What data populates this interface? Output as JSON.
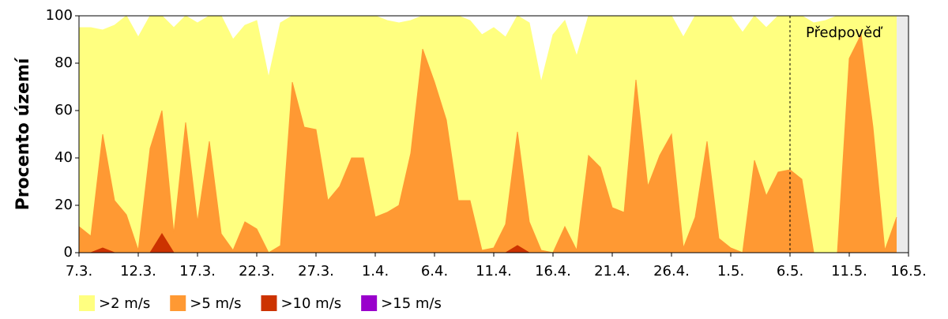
{
  "chart_data": {
    "type": "area",
    "ylabel": "Procento území",
    "categories": [
      "7.3.",
      null,
      null,
      null,
      null,
      "12.3.",
      null,
      null,
      null,
      null,
      "17.3.",
      null,
      null,
      null,
      null,
      "22.3.",
      null,
      null,
      null,
      null,
      "27.3.",
      null,
      null,
      null,
      null,
      "1.4.",
      null,
      null,
      null,
      null,
      "6.4.",
      null,
      null,
      null,
      null,
      "11.4.",
      null,
      null,
      null,
      null,
      "16.4.",
      null,
      null,
      null,
      null,
      "21.4.",
      null,
      null,
      null,
      null,
      "26.4.",
      null,
      null,
      null,
      null,
      "1.5.",
      null,
      null,
      null,
      null,
      "6.5.",
      null,
      null,
      null,
      null,
      "11.5.",
      null,
      null,
      null,
      null,
      "16.5."
    ],
    "series": [
      {
        "name": ">2 m/s",
        "color": "#ffff80",
        "values": [
          95,
          95,
          94,
          96,
          100,
          91,
          100,
          100,
          95,
          100,
          97,
          100,
          100,
          90,
          96,
          98,
          74,
          97,
          100,
          100,
          100,
          100,
          100,
          100,
          100,
          100,
          98,
          97,
          98,
          100,
          100,
          100,
          100,
          98,
          92,
          95,
          91,
          100,
          97,
          72,
          92,
          98,
          83,
          100,
          100,
          100,
          100,
          100,
          100,
          100,
          100,
          91,
          100,
          100,
          100,
          100,
          93,
          100,
          95,
          100,
          100,
          100,
          97,
          98,
          100,
          100,
          100,
          100,
          100,
          100,
          null
        ]
      },
      {
        "name": ">5 m/s",
        "color": "#ff9933",
        "values": [
          11,
          7,
          50,
          22,
          16,
          1,
          44,
          60,
          8,
          55,
          13,
          47,
          8,
          1,
          13,
          10,
          0,
          3,
          72,
          53,
          52,
          22,
          28,
          40,
          40,
          15,
          17,
          20,
          42,
          86,
          72,
          56,
          22,
          22,
          1,
          2,
          12,
          51,
          13,
          1,
          0,
          11,
          1,
          41,
          36,
          19,
          17,
          73,
          28,
          41,
          50,
          2,
          15,
          47,
          6,
          2,
          0,
          39,
          24,
          34,
          35,
          31,
          0,
          0,
          0,
          82,
          92,
          53,
          1,
          15,
          null
        ]
      },
      {
        "name": ">10 m/s",
        "color": "#cc3300",
        "values": [
          0,
          0,
          2,
          0,
          0,
          0,
          0,
          8,
          0,
          0,
          0,
          0,
          0,
          0,
          0,
          0,
          0,
          0,
          0,
          0,
          0,
          0,
          0,
          0,
          0,
          0,
          0,
          0,
          0,
          0,
          0,
          0,
          0,
          0,
          0,
          0,
          0,
          3,
          0,
          0,
          0,
          0,
          0,
          0,
          0,
          0,
          0,
          0,
          0,
          0,
          0,
          0,
          0,
          0,
          0,
          0,
          0,
          0,
          0,
          0,
          0,
          0,
          0,
          0,
          0,
          0,
          0,
          0,
          0,
          0,
          null
        ]
      },
      {
        "name": ">15 m/s",
        "color": "#9900cc",
        "values": [
          0,
          0,
          0,
          0,
          0,
          0,
          0,
          0,
          0,
          0,
          0,
          0,
          0,
          0,
          0,
          0,
          0,
          0,
          0,
          0,
          0,
          0,
          0,
          0,
          0,
          0,
          0,
          0,
          0,
          0,
          0,
          0,
          0,
          0,
          0,
          0,
          0,
          0,
          0,
          0,
          0,
          0,
          0,
          0,
          0,
          0,
          0,
          0,
          0,
          0,
          0,
          0,
          0,
          0,
          0,
          0,
          0,
          0,
          0,
          0,
          0,
          0,
          0,
          0,
          0,
          0,
          0,
          0,
          0,
          0,
          null
        ]
      }
    ],
    "ylim": [
      0,
      100
    ],
    "yticks": [
      0,
      20,
      40,
      60,
      80,
      100
    ],
    "annotation": {
      "text": "Předpověď",
      "x": 60
    }
  }
}
